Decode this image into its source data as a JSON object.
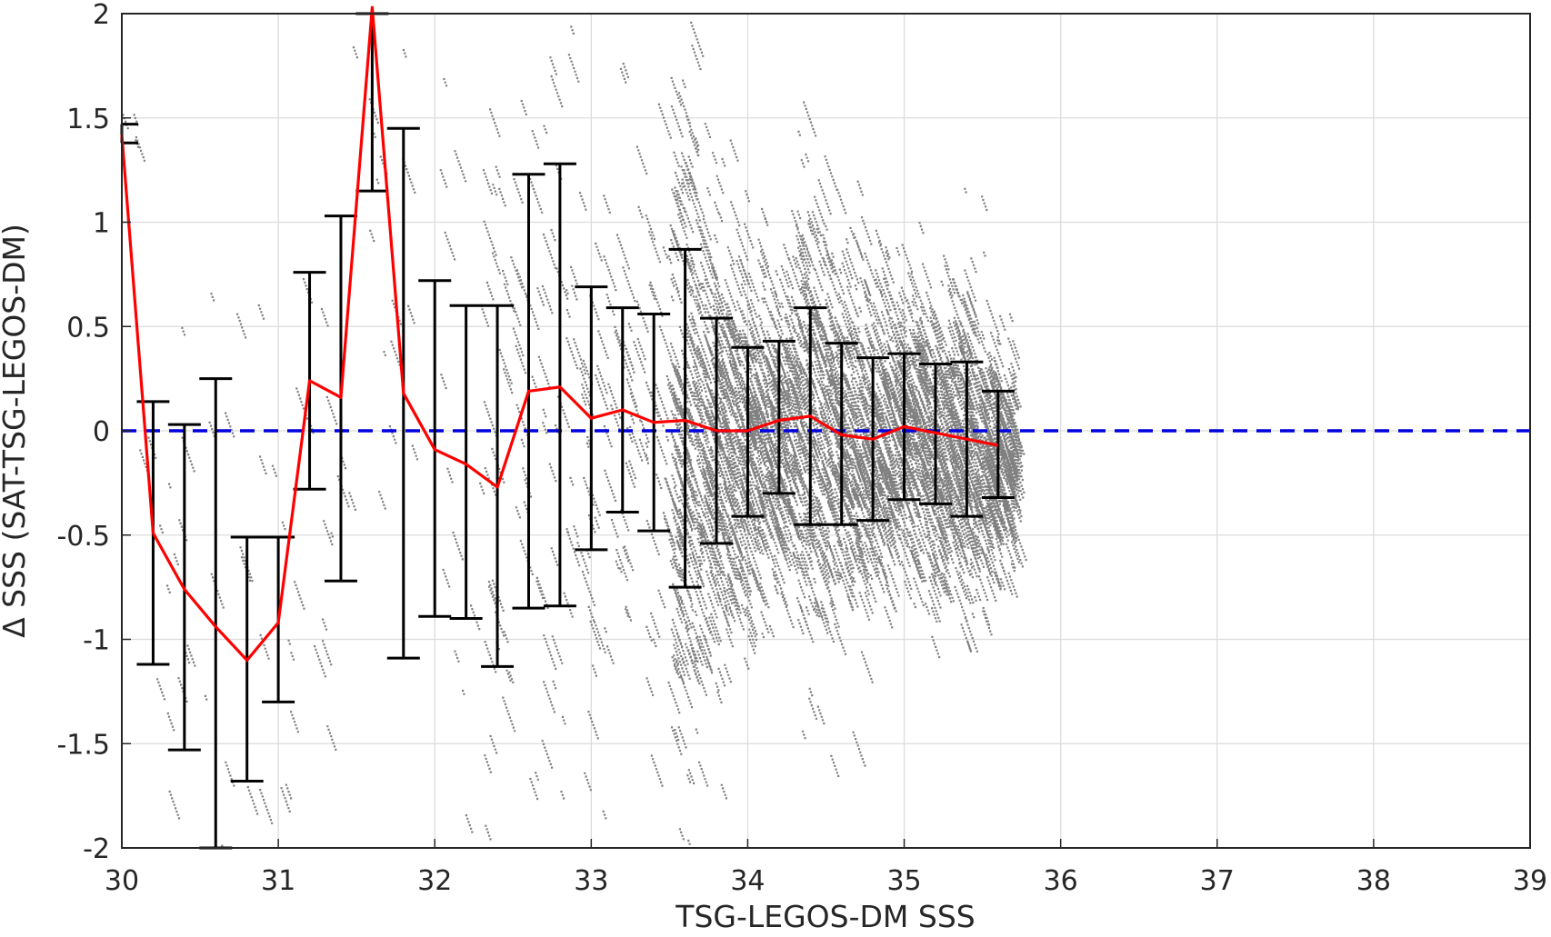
{
  "chart_data": {
    "type": "scatter",
    "xlabel": "TSG-LEGOS-DM SSS",
    "ylabel": "Δ SSS (SAT-TSG-LEGOS-DM)",
    "xlim": [
      30,
      39
    ],
    "ylim": [
      -2,
      2
    ],
    "x_ticks": [
      "30",
      "31",
      "32",
      "33",
      "34",
      "35",
      "36",
      "37",
      "38",
      "39"
    ],
    "y_ticks": [
      "-2",
      "-1.5",
      "-1",
      "-0.5",
      "0",
      "0.5",
      "1",
      "1.5",
      "2"
    ],
    "grid": true,
    "reference_line": {
      "y": 0,
      "style": "dashed",
      "color": "#0000dd"
    },
    "colors": {
      "scatter": "#808080",
      "mean_line": "#ff0000",
      "error_bars": "#000000",
      "reference": "#0000dd",
      "grid": "#dcdcdc",
      "axes": "#262626"
    },
    "series": [
      {
        "kind": "mean_with_error_bars",
        "x": [
          30.0,
          30.2,
          30.4,
          30.6,
          30.8,
          31.0,
          31.2,
          31.4,
          31.6,
          31.8,
          32.0,
          32.2,
          32.4,
          32.6,
          32.8,
          33.0,
          33.2,
          33.4,
          33.6,
          33.8,
          34.0,
          34.2,
          34.4,
          34.6,
          34.8,
          35.0,
          35.2,
          35.4,
          35.6
        ],
        "mean": [
          1.42,
          -0.49,
          -0.76,
          -0.94,
          -1.1,
          -0.92,
          0.24,
          0.16,
          2.03,
          0.18,
          -0.09,
          -0.16,
          -0.27,
          0.19,
          0.21,
          0.06,
          0.1,
          0.04,
          0.05,
          0.0,
          0.0,
          0.05,
          0.07,
          -0.02,
          -0.04,
          0.02,
          -0.01,
          -0.04,
          -0.07
        ],
        "lower": [
          1.38,
          -1.12,
          -1.53,
          -2.0,
          -1.68,
          -1.3,
          -0.28,
          -0.72,
          1.15,
          -1.09,
          -0.89,
          -0.9,
          -1.13,
          -0.85,
          -0.84,
          -0.57,
          -0.39,
          -0.48,
          -0.75,
          -0.54,
          -0.41,
          -0.3,
          -0.45,
          -0.45,
          -0.43,
          -0.33,
          -0.35,
          -0.41,
          -0.32
        ],
        "upper": [
          1.47,
          0.14,
          0.03,
          0.25,
          -0.51,
          -0.51,
          0.76,
          1.03,
          2.0,
          1.45,
          0.72,
          0.6,
          0.6,
          1.23,
          1.28,
          0.69,
          0.59,
          0.56,
          0.87,
          0.54,
          0.4,
          0.43,
          0.59,
          0.42,
          0.35,
          0.37,
          0.32,
          0.33,
          0.19
        ]
      }
    ]
  }
}
